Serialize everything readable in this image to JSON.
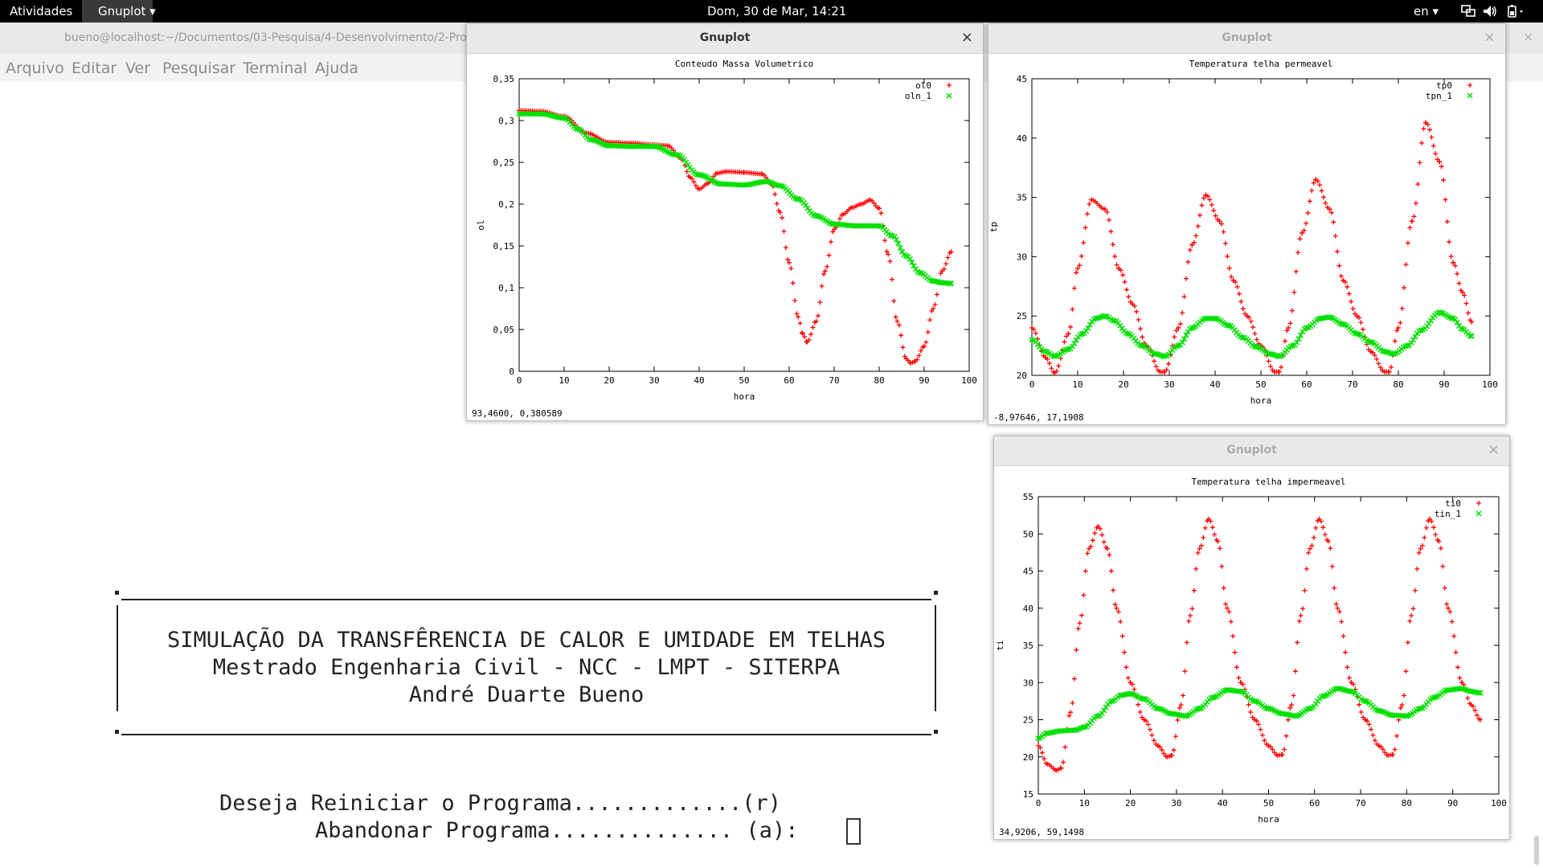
{
  "topbar": {
    "activities": "Atividades",
    "app_menu": "Gnuplot ▾",
    "clock": "Dom, 30 de Mar, 14:21",
    "lang": "en ▾"
  },
  "terminal": {
    "title": "bueno@localhost:~/Documentos/03-Pesquisa/4-Desenvolvimento/2-Prog",
    "menu": [
      "Arquivo",
      "Editar",
      "Ver",
      "Pesquisar",
      "Terminal",
      "Ajuda"
    ],
    "banner": [
      "SIMULAÇÃO DA TRANSFÊRENCIA DE CALOR E UMIDADE EM TELHAS",
      "Mestrado Engenharia Civil - NCC - LMPT - SITERPA",
      "André Duarte Bueno"
    ],
    "prompt1": "Deseja Reiniciar o Programa.............(r)",
    "prompt2": "Abandonar Programa.............. (a):"
  },
  "windows": [
    {
      "title": "Gnuplot",
      "close": "×",
      "status": "93,4600,  0,380589"
    },
    {
      "title": "Gnuplot",
      "close": "×",
      "status": "-8,97646,  17,1908"
    },
    {
      "title": "Gnuplot",
      "close": "×",
      "status": "34,9206,  59,1498"
    }
  ],
  "chart_data": [
    {
      "type": "scatter",
      "title": "Conteudo Massa Volumetrico",
      "xlabel": "hora",
      "ylabel": "ol",
      "xlim": [
        0,
        100
      ],
      "ylim": [
        0,
        0.35
      ],
      "xticks": [
        "0",
        "10",
        "20",
        "30",
        "40",
        "50",
        "60",
        "70",
        "80",
        "90",
        "100"
      ],
      "yticks": [
        "0",
        "0,05",
        "0,1",
        "0,15",
        "0,2",
        "0,25",
        "0,3",
        "0,35"
      ],
      "legend_position": "top-right",
      "series": [
        {
          "name": "ol0",
          "marker": "+",
          "color": "#ff0000",
          "x": [
            0,
            5,
            10,
            15,
            20,
            25,
            30,
            33,
            36,
            38,
            40,
            42,
            44,
            46,
            50,
            54,
            56,
            58,
            60,
            62,
            63,
            64,
            66,
            68,
            70,
            72,
            74,
            76,
            78,
            80,
            82,
            84,
            86,
            87,
            88,
            90,
            92,
            94,
            96
          ],
          "y": [
            0.312,
            0.311,
            0.305,
            0.285,
            0.274,
            0.273,
            0.271,
            0.27,
            0.255,
            0.232,
            0.218,
            0.225,
            0.237,
            0.239,
            0.238,
            0.236,
            0.225,
            0.19,
            0.13,
            0.065,
            0.045,
            0.035,
            0.06,
            0.12,
            0.17,
            0.188,
            0.196,
            0.2,
            0.205,
            0.195,
            0.14,
            0.06,
            0.015,
            0.01,
            0.012,
            0.03,
            0.075,
            0.12,
            0.143
          ]
        },
        {
          "name": "oln_1",
          "marker": "×",
          "color": "#00e000",
          "x": [
            0,
            5,
            10,
            13,
            16,
            20,
            25,
            30,
            35,
            40,
            45,
            50,
            55,
            58,
            62,
            66,
            70,
            75,
            80,
            83,
            86,
            89,
            92,
            94,
            96
          ],
          "y": [
            0.308,
            0.308,
            0.303,
            0.29,
            0.277,
            0.27,
            0.269,
            0.269,
            0.259,
            0.235,
            0.224,
            0.223,
            0.227,
            0.222,
            0.206,
            0.186,
            0.176,
            0.174,
            0.174,
            0.162,
            0.138,
            0.118,
            0.108,
            0.106,
            0.105
          ]
        }
      ]
    },
    {
      "type": "scatter",
      "title": "Temperatura telha permeavel",
      "xlabel": "hora",
      "ylabel": "tp",
      "xlim": [
        0,
        100
      ],
      "ylim": [
        20,
        45
      ],
      "xticks": [
        "0",
        "10",
        "20",
        "30",
        "40",
        "50",
        "60",
        "70",
        "80",
        "90",
        "100"
      ],
      "yticks": [
        "20",
        "25",
        "30",
        "35",
        "40",
        "45"
      ],
      "legend_position": "top-right",
      "series": [
        {
          "name": "tp0",
          "marker": "+",
          "color": "#ff0000",
          "x": [
            0,
            3,
            5,
            8,
            10,
            13,
            16,
            19,
            22,
            25,
            28,
            29,
            32,
            35,
            38,
            41,
            44,
            47,
            50,
            53,
            54,
            56,
            59,
            62,
            65,
            68,
            71,
            74,
            77,
            78,
            80,
            83,
            86,
            89,
            92,
            94,
            96
          ],
          "y": [
            24,
            21.5,
            20.2,
            23.5,
            29,
            34.8,
            34,
            29,
            26,
            22.5,
            20.3,
            20.3,
            24,
            31,
            35.2,
            33,
            28,
            25,
            22.5,
            20.3,
            20.3,
            24,
            32,
            36.5,
            34,
            28,
            25,
            22,
            20.3,
            20.3,
            24,
            33,
            41.3,
            38,
            29.5,
            27,
            24.5
          ]
        },
        {
          "name": "tpn_1",
          "marker": "×",
          "color": "#00e000",
          "x": [
            0,
            3,
            5,
            8,
            11,
            14,
            16,
            18,
            21,
            24,
            27,
            29,
            32,
            35,
            38,
            40,
            43,
            46,
            49,
            52,
            54,
            57,
            60,
            63,
            65,
            68,
            71,
            74,
            77,
            79,
            82,
            85,
            89,
            92,
            94,
            96
          ],
          "y": [
            23,
            22,
            21.6,
            22.2,
            23.5,
            24.8,
            25,
            24.6,
            23.5,
            22.5,
            21.8,
            21.6,
            22.5,
            24,
            24.8,
            24.8,
            24.2,
            23.2,
            22.4,
            21.8,
            21.6,
            22.5,
            24,
            24.8,
            24.9,
            24.3,
            23.5,
            22.8,
            22,
            21.8,
            22.5,
            23.8,
            25.3,
            24.8,
            23.9,
            23.3
          ]
        }
      ]
    },
    {
      "type": "scatter",
      "title": "Temperatura telha impermeavel",
      "xlabel": "hora",
      "ylabel": "ti",
      "xlim": [
        0,
        100
      ],
      "ylim": [
        15,
        55
      ],
      "xticks": [
        "0",
        "10",
        "20",
        "30",
        "40",
        "50",
        "60",
        "70",
        "80",
        "90",
        "100"
      ],
      "yticks": [
        "15",
        "20",
        "25",
        "30",
        "35",
        "40",
        "45",
        "50",
        "55"
      ],
      "legend_position": "top-right",
      "series": [
        {
          "name": "ti0",
          "marker": "+",
          "color": "#ff0000",
          "x": [
            0,
            2,
            4,
            5,
            7,
            9,
            11,
            13,
            15,
            17,
            20,
            23,
            26,
            28,
            29,
            31,
            33,
            35,
            37,
            39,
            41,
            44,
            47,
            50,
            52,
            53,
            55,
            57,
            59,
            61,
            63,
            65,
            68,
            71,
            74,
            76,
            77,
            79,
            81,
            83,
            85,
            87,
            89,
            92,
            94,
            96
          ],
          "y": [
            21.5,
            19,
            18.2,
            18.5,
            26,
            38,
            48,
            51,
            48,
            40,
            30,
            25,
            21.5,
            20,
            20.2,
            27,
            39,
            48,
            52,
            49,
            40,
            30,
            25,
            21.5,
            20.2,
            20.3,
            27,
            39,
            48,
            52,
            49,
            40,
            30,
            25,
            21.5,
            20.2,
            20.3,
            27,
            39,
            48,
            52,
            49,
            40,
            30,
            27,
            25
          ]
        },
        {
          "name": "tin_1",
          "marker": "×",
          "color": "#00e000",
          "x": [
            0,
            2,
            5,
            8,
            10,
            13,
            16,
            18,
            20,
            23,
            26,
            29,
            32,
            35,
            38,
            41,
            44,
            47,
            50,
            53,
            56,
            59,
            62,
            65,
            68,
            71,
            74,
            77,
            80,
            83,
            86,
            89,
            92,
            94,
            96
          ],
          "y": [
            22.5,
            23.2,
            23.5,
            23.6,
            24,
            25.5,
            27.5,
            28.3,
            28.5,
            27.8,
            26.5,
            25.8,
            25.5,
            26.5,
            28,
            29,
            28.8,
            27.5,
            26.5,
            25.8,
            25.5,
            26.5,
            28.2,
            29.2,
            28.8,
            27.5,
            26.2,
            25.6,
            25.5,
            26.5,
            28,
            29,
            29.2,
            28.8,
            28.6
          ]
        }
      ]
    }
  ]
}
